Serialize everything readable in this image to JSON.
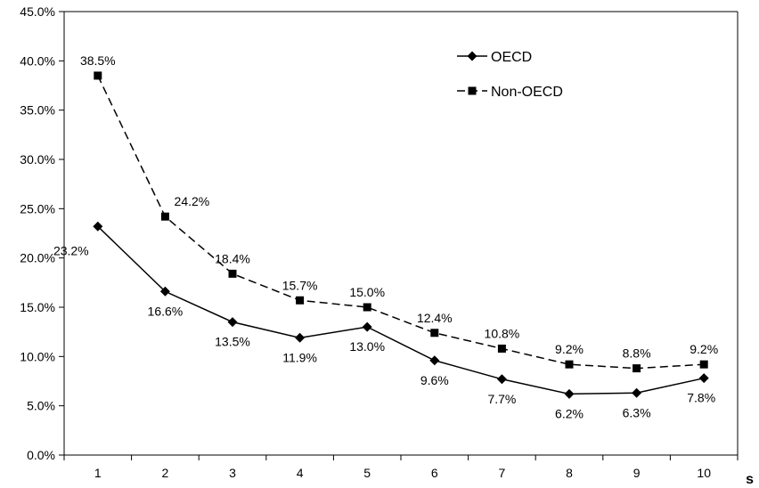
{
  "chart_data": {
    "type": "line",
    "x": [
      1,
      2,
      3,
      4,
      5,
      6,
      7,
      8,
      9,
      10
    ],
    "x_tick_labels": [
      "1",
      "2",
      "3",
      "4",
      "5",
      "6",
      "7",
      "8",
      "9",
      "10"
    ],
    "xlabel": "s",
    "ylabel": "",
    "ylim": [
      0,
      45
    ],
    "y_ticks": [
      0,
      5,
      10,
      15,
      20,
      25,
      30,
      35,
      40,
      45
    ],
    "y_tick_labels": [
      "0.0%",
      "5.0%",
      "10.0%",
      "15.0%",
      "20.0%",
      "25.0%",
      "30.0%",
      "35.0%",
      "40.0%",
      "45.0%"
    ],
    "grid": false,
    "legend_position": "top-right",
    "series": [
      {
        "name": "OECD",
        "values": [
          23.2,
          16.6,
          13.5,
          11.9,
          13.0,
          9.6,
          7.7,
          6.2,
          6.3,
          7.8
        ],
        "labels": [
          "23.2%",
          "16.6%",
          "13.5%",
          "11.9%",
          "13.0%",
          "9.6%",
          "7.7%",
          "6.2%",
          "6.3%",
          "7.8%"
        ],
        "marker": "diamond",
        "line_style": "solid",
        "color": "#000000"
      },
      {
        "name": "Non-OECD",
        "values": [
          38.5,
          24.2,
          18.4,
          15.7,
          15.0,
          12.4,
          10.8,
          9.2,
          8.8,
          9.2
        ],
        "labels": [
          "38.5%",
          "24.2%",
          "18.4%",
          "15.7%",
          "15.0%",
          "12.4%",
          "10.8%",
          "9.2%",
          "8.8%",
          "9.2%"
        ],
        "marker": "square",
        "line_style": "dashed",
        "color": "#000000"
      }
    ]
  }
}
